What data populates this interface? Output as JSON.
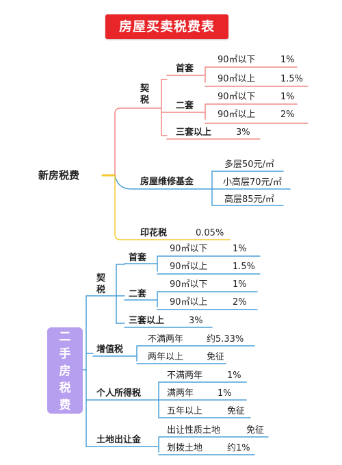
{
  "title": "房屋买卖税费表",
  "new_house": {
    "label": "新房税费",
    "deed_tax": {
      "label_chars": [
        "契",
        "税"
      ],
      "first": {
        "label": "首套",
        "rows": [
          {
            "area": "90㎡以下",
            "rate": "1%"
          },
          {
            "area": "90㎡以上",
            "rate": "1.5%"
          }
        ]
      },
      "second": {
        "label": "二套",
        "rows": [
          {
            "area": "90㎡以下",
            "rate": "1%"
          },
          {
            "area": "90㎡以上",
            "rate": "2%"
          }
        ]
      },
      "third": {
        "label": "三套以上",
        "rate": "3%"
      }
    },
    "maintenance": {
      "label": "房屋维修基金",
      "items": [
        "多层50元/㎡",
        "小高层70元/㎡",
        "高层85元/㎡"
      ]
    },
    "stamp": {
      "label": "印花税",
      "rate": "0.05%"
    }
  },
  "second_hand": {
    "label_chars": [
      "二",
      "手",
      "房",
      "税",
      "费"
    ],
    "deed_tax": {
      "label_chars": [
        "契",
        "税"
      ],
      "first": {
        "label": "首套",
        "rows": [
          {
            "area": "90㎡以下",
            "rate": "1%"
          },
          {
            "area": "90㎡以上",
            "rate": "1.5%"
          }
        ]
      },
      "second": {
        "label": "二套",
        "rows": [
          {
            "area": "90㎡以下",
            "rate": "1%"
          },
          {
            "area": "90㎡以上",
            "rate": "2%"
          }
        ]
      },
      "third": {
        "label": "三套以上",
        "rate": "3%"
      }
    },
    "vat": {
      "label": "增值税",
      "rows": [
        {
          "cond": "不满两年",
          "rate": "约5.33%"
        },
        {
          "cond": "两年以上",
          "rate": "免征"
        }
      ]
    },
    "income_tax": {
      "label": "个人所得税",
      "rows": [
        {
          "cond": "不满两年",
          "rate": "1%"
        },
        {
          "cond": "满两年",
          "rate": "1%"
        },
        {
          "cond": "五年以上",
          "rate": "免征"
        }
      ]
    },
    "land": {
      "label": "土地出让金",
      "rows": [
        {
          "cond": "出让性质土地",
          "rate": "免征"
        },
        {
          "cond": "划拨土地",
          "rate": "约1%"
        }
      ]
    }
  },
  "colors": {
    "title_bg": "#e8262a",
    "deed_branch": "#f08a84",
    "fund_branch": "#4aa0d8",
    "stamp_branch": "#f5c830",
    "old_root_bg": "#b79ff0",
    "line_blue": "#4aa0d8"
  }
}
